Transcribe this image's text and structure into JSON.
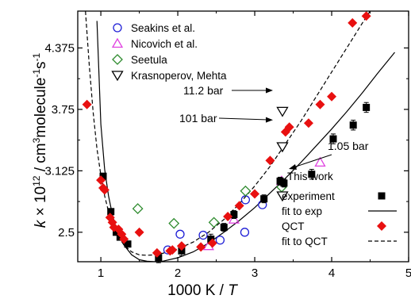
{
  "chart_data": {
    "type": "scatter",
    "xlabel": "1000 K / T",
    "ylabel": "k × 10¹² / cm³molecule⁻¹s⁻¹",
    "xlim": [
      0.7,
      5.0
    ],
    "ylim": [
      2.2,
      4.75
    ],
    "xticks": [
      1,
      2,
      3,
      4,
      5
    ],
    "yticks": [
      2.5,
      3.125,
      3.75,
      4.375
    ],
    "ytick_labels": [
      "2.5",
      "3.125",
      "3.75",
      "4.375"
    ],
    "grid": false,
    "colors": {
      "seakins": "#1f1fd6",
      "nicovich": "#e040e0",
      "seetula": "#2e8b2e",
      "krasnoperov": "#000000",
      "experiment": "#000000",
      "qct": "#e81010"
    },
    "legend_top": [
      {
        "key": "seakins",
        "label": "Seakins et al.",
        "marker": "circle-open"
      },
      {
        "key": "nicovich",
        "label": "Nicovich et al.",
        "marker": "triangle-open"
      },
      {
        "key": "seetula",
        "label": "Seetula",
        "marker": "diamond-open"
      },
      {
        "key": "krasnoperov",
        "label": "Krasnoperov, Mehta",
        "marker": "triangle-down-open"
      }
    ],
    "legend_bottom": {
      "header": "This work",
      "items": [
        {
          "label": "experiment",
          "marker": "square-filled"
        },
        {
          "label": "fit to exp",
          "marker": "line-solid"
        },
        {
          "label": "QCT",
          "marker": "diamond-filled"
        },
        {
          "label": "fit to QCT",
          "marker": "line-dashed"
        }
      ]
    },
    "annotations": [
      "11.2 bar",
      "101 bar",
      "1.05 bar"
    ],
    "series": [
      {
        "name": "Seakins et al.",
        "key": "seakins",
        "marker": "circle-open",
        "points": [
          [
            1.87,
            2.32
          ],
          [
            2.03,
            2.48
          ],
          [
            2.33,
            2.47
          ],
          [
            2.55,
            2.42
          ],
          [
            2.87,
            2.5
          ],
          [
            2.88,
            2.83
          ],
          [
            3.1,
            2.78
          ]
        ]
      },
      {
        "name": "Nicovich et al.",
        "key": "nicovich",
        "marker": "triangle-open",
        "points": [
          [
            2.4,
            2.36
          ],
          [
            2.73,
            2.63
          ],
          [
            3.35,
            3.02
          ],
          [
            3.85,
            3.21
          ]
        ]
      },
      {
        "name": "Seetula",
        "key": "seetula",
        "marker": "diamond-open",
        "points": [
          [
            1.48,
            2.74
          ],
          [
            1.95,
            2.59
          ],
          [
            2.47,
            2.6
          ],
          [
            2.88,
            2.92
          ],
          [
            3.35,
            2.96
          ]
        ]
      },
      {
        "name": "Krasnoperov, Mehta",
        "key": "krasnoperov",
        "marker": "triangle-down-open",
        "points": [
          [
            3.36,
            3.73
          ],
          [
            3.36,
            3.37
          ],
          [
            3.36,
            2.87
          ]
        ]
      },
      {
        "name": "experiment",
        "key": "experiment",
        "marker": "square-filled",
        "points": [
          [
            1.03,
            3.07
          ],
          [
            1.13,
            2.71
          ],
          [
            1.2,
            2.5
          ],
          [
            1.25,
            2.45
          ],
          [
            1.35,
            2.38
          ],
          [
            1.75,
            2.24
          ],
          [
            2.05,
            2.31
          ],
          [
            2.43,
            2.43
          ],
          [
            2.6,
            2.55
          ],
          [
            2.73,
            2.68
          ],
          [
            3.12,
            2.84
          ],
          [
            3.33,
            3.02
          ],
          [
            3.38,
            3.0
          ],
          [
            3.74,
            3.09
          ],
          [
            4.02,
            3.45
          ],
          [
            4.28,
            3.59
          ],
          [
            4.45,
            3.77
          ]
        ],
        "errors": [
          0.03,
          0.03,
          0.03,
          0.03,
          0.03,
          0.05,
          0.05,
          0.05,
          0.04,
          0.04,
          0.04,
          0.04,
          0.04,
          0.05,
          0.05,
          0.05,
          0.05
        ]
      },
      {
        "name": "QCT",
        "key": "qct",
        "marker": "diamond-filled",
        "points": [
          [
            0.82,
            3.8
          ],
          [
            1.0,
            3.03
          ],
          [
            1.03,
            2.95
          ],
          [
            1.05,
            2.93
          ],
          [
            1.12,
            2.65
          ],
          [
            1.15,
            2.6
          ],
          [
            1.17,
            2.55
          ],
          [
            1.23,
            2.53
          ],
          [
            1.27,
            2.48
          ],
          [
            1.3,
            2.43
          ],
          [
            1.5,
            2.5
          ],
          [
            1.73,
            2.29
          ],
          [
            1.9,
            2.31
          ],
          [
            1.93,
            2.32
          ],
          [
            2.05,
            2.36
          ],
          [
            2.3,
            2.35
          ],
          [
            2.45,
            2.39
          ],
          [
            2.65,
            2.66
          ],
          [
            2.8,
            2.77
          ],
          [
            3.0,
            2.89
          ],
          [
            3.2,
            3.23
          ],
          [
            3.4,
            3.52
          ],
          [
            3.45,
            3.57
          ],
          [
            3.7,
            3.61
          ],
          [
            3.85,
            3.8
          ],
          [
            4.0,
            3.88
          ],
          [
            4.27,
            4.63
          ],
          [
            4.45,
            4.7
          ]
        ]
      }
    ],
    "fits": [
      {
        "name": "fit to exp",
        "style": "solid",
        "points": [
          [
            0.95,
            4.65
          ],
          [
            1.0,
            3.6
          ],
          [
            1.05,
            3.14
          ],
          [
            1.1,
            2.87
          ],
          [
            1.15,
            2.68
          ],
          [
            1.2,
            2.54
          ],
          [
            1.3,
            2.37
          ],
          [
            1.4,
            2.27
          ],
          [
            1.5,
            2.22
          ],
          [
            1.6,
            2.205
          ],
          [
            1.7,
            2.2
          ],
          [
            1.8,
            2.205
          ],
          [
            2.0,
            2.24
          ],
          [
            2.2,
            2.3
          ],
          [
            2.4,
            2.39
          ],
          [
            2.6,
            2.5
          ],
          [
            2.8,
            2.62
          ],
          [
            3.0,
            2.75
          ],
          [
            3.2,
            2.9
          ],
          [
            3.4,
            3.05
          ],
          [
            3.6,
            3.21
          ],
          [
            3.8,
            3.38
          ],
          [
            4.0,
            3.55
          ],
          [
            4.2,
            3.73
          ],
          [
            4.4,
            3.92
          ],
          [
            4.6,
            4.12
          ],
          [
            4.82,
            4.33
          ]
        ]
      },
      {
        "name": "fit to QCT",
        "style": "dashed",
        "points": [
          [
            0.8,
            4.75
          ],
          [
            0.85,
            4.2
          ],
          [
            0.9,
            3.72
          ],
          [
            0.95,
            3.35
          ],
          [
            1.0,
            3.08
          ],
          [
            1.05,
            2.87
          ],
          [
            1.1,
            2.71
          ],
          [
            1.2,
            2.49
          ],
          [
            1.3,
            2.37
          ],
          [
            1.4,
            2.3
          ],
          [
            1.5,
            2.27
          ],
          [
            1.6,
            2.265
          ],
          [
            1.7,
            2.27
          ],
          [
            1.8,
            2.285
          ],
          [
            2.0,
            2.33
          ],
          [
            2.2,
            2.4
          ],
          [
            2.4,
            2.5
          ],
          [
            2.6,
            2.63
          ],
          [
            2.8,
            2.79
          ],
          [
            3.0,
            2.97
          ],
          [
            3.2,
            3.17
          ],
          [
            3.4,
            3.4
          ],
          [
            3.6,
            3.63
          ],
          [
            3.8,
            3.88
          ],
          [
            4.0,
            4.13
          ],
          [
            4.2,
            4.38
          ],
          [
            4.4,
            4.63
          ],
          [
            4.5,
            4.75
          ]
        ]
      }
    ]
  }
}
